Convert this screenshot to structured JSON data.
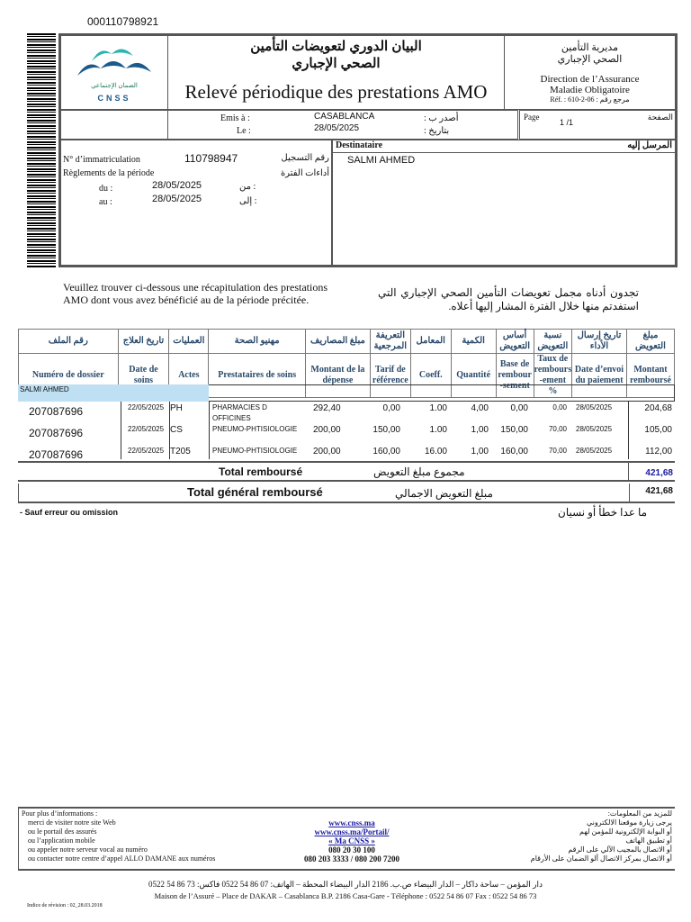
{
  "doc_number": "000110798921",
  "header": {
    "title_ar_1": "البيان الدوري لتعويضات التأمين",
    "title_ar_2": "الصحي الإجباري",
    "title_fr": "Relevé périodique des prestations AMO",
    "logo_ar": "الضمان الإجتماعي",
    "logo_text": "CNSS",
    "dept_ar_1": "مديرية التأمين",
    "dept_ar_2": "الصحي الإجباري",
    "dept_fr_1": "Direction de l’Assurance",
    "dept_fr_2": "Maladie Obligatoire",
    "ref": "Réf. : 610-2-06 : مرجع رقم"
  },
  "issue": {
    "emis_label": "Emis à :",
    "emis_value": "CASABLANCA",
    "emis_ar": "أصدر ب :",
    "le_label": "Le :",
    "le_value": "28/05/2025",
    "le_ar": "بتاريخ :",
    "page_label": "Page",
    "page_value": "1 /1",
    "page_ar": "الصفحة"
  },
  "insured": {
    "immat_label": "N° d’immatriculation",
    "immat_value": "110798947",
    "immat_ar": "رقم التسجيل",
    "period_label": "Règlements de la  période",
    "period_ar": "أداءات الفترة",
    "du_label": "du   :",
    "du_value": "28/05/2025",
    "du_ar": ":   من",
    "au_label": "au   :",
    "au_value": "28/05/2025",
    "au_ar": ":   إلى"
  },
  "recipient": {
    "label": "Destinataire",
    "label_ar": "المرسل إليه",
    "name": "SALMI AHMED"
  },
  "intro": {
    "fr": "Veuillez trouver ci-dessous une récapitulation des prestations AMO dont vous avez bénéficié au de la période précitée.",
    "ar": "تجدون أدناه مجمل تعويضات التأمين الصحي الإجباري التي استفدتم منها خلال الفترة المشار إليها أعلاه."
  },
  "table": {
    "headers_ar": [
      "رقم الملف",
      "تاريخ العلاج",
      "العمليات",
      "مهنيو الصحة",
      "مبلغ المصاريف",
      "التعريفة المرجعية",
      "المعامل",
      "الكمية",
      "أساس التعويض",
      "نسبة التعويض",
      "تاريخ إرسال الأداء",
      "مبلغ التعويض"
    ],
    "headers_fr": [
      "Numéro de dossier",
      "Date de soins",
      "Actes",
      "Prestataires de soins",
      "Montant de la dépense",
      "Tarif de référence",
      "Coeff.",
      "Quantité",
      "Base de rembour -sement",
      "Taux de rembours -ement %",
      "Date d’envoi du paiement",
      "Montant remboursé"
    ],
    "beneficiary": "SALMI AHMED",
    "rows": [
      {
        "dossier": "207087696",
        "date": "22/05/2025",
        "acte": "PH",
        "prestataire": "PHARMACIES D",
        "prestataire2": "OFFICINES",
        "montant": "292,40",
        "tarif": "0,00",
        "coeff": "1.00",
        "qte": "4,00",
        "base": "0,00",
        "taux": "0,00",
        "envoi": "28/05/2025",
        "rembourse": "204,68"
      },
      {
        "dossier": "207087696",
        "date": "22/05/2025",
        "acte": "CS",
        "prestataire": "PNEUMO-PHTISIOLOGIE",
        "prestataire2": "",
        "montant": "200,00",
        "tarif": "150,00",
        "coeff": "1.00",
        "qte": "1,00",
        "base": "150,00",
        "taux": "70,00",
        "envoi": "28/05/2025",
        "rembourse": "105,00"
      },
      {
        "dossier": "207087696",
        "date": "22/05/2025",
        "acte": "T205",
        "prestataire": "PNEUMO-PHTISIOLOGIE",
        "prestataire2": "",
        "montant": "200,00",
        "tarif": "160,00",
        "coeff": "16.00",
        "qte": "1,00",
        "base": "160,00",
        "taux": "70,00",
        "envoi": "28/05/2025",
        "rembourse": "112,00"
      }
    ],
    "total_label": "Total remboursé",
    "total_ar": "مجموع مبلغ التعويض",
    "total_value": "421,68",
    "grand_total_label": "Total général remboursé",
    "grand_total_ar": "مبلغ التعويض الاجمالي",
    "grand_total_value": "421,68"
  },
  "disclaimer": {
    "fr": "- Sauf erreur ou omission",
    "ar": "ما عدا خطأ أو نسيان"
  },
  "info": {
    "title": "Pour  plus d’informations :",
    "title_ar": "للمزيد من المعلومات:",
    "lines": [
      {
        "fr": "merci de visiter notre site Web",
        "mid": "www.cnss.ma",
        "ar": "يرجى زيارة موقعنا الالكتروني"
      },
      {
        "fr": "ou le portail des assurés",
        "mid": "www.cnss.ma/Portail/",
        "ar": "أو البوابة الإلكترونية للمؤمن لهم"
      },
      {
        "fr": "ou l’application mobile",
        "mid": "« Ma CNSS »",
        "ar": "أو تطبيق الهاتف"
      },
      {
        "fr": "ou appeler  notre serveur vocal au numéro",
        "mid": "080 20 30 100",
        "ar": "أو الاتصال بالمجيب الآلي على الرقم"
      },
      {
        "fr": "ou contacter  notre centre d’appel ALLO DAMANE aux  numéros",
        "mid": "080 203 3333 / 080 200 7200",
        "ar": "أو الاتصال بمركز الاتصال ألو الضمان على الأرقام"
      }
    ]
  },
  "address": {
    "ar": "دار المؤمن – ساحة داكار – الدار البيضاء ص.ب. 2186 الدار البيضاء المحطة – الهاتف: 07 86 54 0522 فاكس: 73 86 54 0522",
    "fr": "Maison de l’Assuré – Place de DAKAR  – Casablanca B.P. 2186 Casa-Gare - Téléphone : 0522  54 86 07 Fax : 0522 54 86 73"
  },
  "revision": "Indice de révision : 02_28.03.2018",
  "colors": {
    "header_text": "#2a4a6a",
    "beneficiary_bg": "#bfe0f2",
    "total_blue": "#1a1aa0",
    "logo_teal": "#2bb3b0",
    "logo_blue": "#1c5a8c"
  }
}
